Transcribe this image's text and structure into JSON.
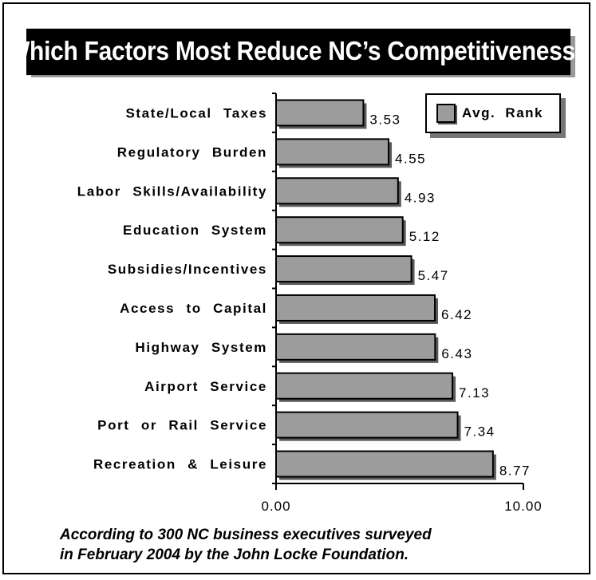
{
  "title": "Which Factors Most Reduce NC’s Competitiveness?",
  "legend": {
    "label": "Avg. Rank"
  },
  "footnote": {
    "line1": "According to 300 NC business executives surveyed",
    "line2": "in February 2004 by the John Locke Foundation."
  },
  "colors": {
    "bar": "#9c9c9c",
    "bar_shadow": "#5a5a5a",
    "title_bg": "#000000"
  },
  "chart_data": {
    "type": "bar",
    "orientation": "horizontal",
    "categories": [
      "State/Local Taxes",
      "Regulatory Burden",
      "Labor Skills/Availability",
      "Education System",
      "Subsidies/Incentives",
      "Access to Capital",
      "Highway System",
      "Airport Service",
      "Port or Rail Service",
      "Recreation & Leisure"
    ],
    "series": [
      {
        "name": "Avg. Rank",
        "values": [
          3.53,
          4.55,
          4.93,
          5.12,
          5.47,
          6.42,
          6.43,
          7.13,
          7.34,
          8.77
        ]
      }
    ],
    "value_labels": [
      "3.53",
      "4.55",
      "4.93",
      "5.12",
      "5.47",
      "6.42",
      "6.43",
      "7.13",
      "7.34",
      "8.77"
    ],
    "xlim": [
      0,
      10
    ],
    "x_tick_labels": [
      "0.00",
      "10.00"
    ],
    "legend_position": "top-right",
    "grid": false
  }
}
